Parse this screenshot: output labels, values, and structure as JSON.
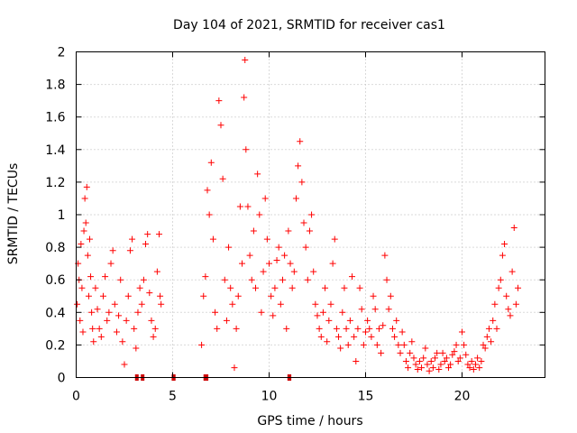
{
  "chart_data": {
    "type": "scatter",
    "title": "Day 104 of 2021, SRMTID for receiver cas1",
    "xlabel": "GPS time / hours",
    "ylabel": "SRMTID / TECUs",
    "xlim": [
      0,
      24.3
    ],
    "ylim": [
      0,
      2
    ],
    "xticks": [
      0,
      5,
      10,
      15,
      20
    ],
    "xtick_labels": [
      "0",
      "5",
      "10",
      "15",
      "20"
    ],
    "yticks": [
      0,
      0.2,
      0.4,
      0.6,
      0.8,
      1,
      1.2,
      1.4,
      1.6,
      1.8,
      2
    ],
    "ytick_labels": [
      "0",
      "0.2",
      "0.4",
      "0.6",
      "0.8",
      "1",
      "1.2",
      "1.4",
      "1.6",
      "1.8",
      "2"
    ],
    "grid": true,
    "marker": "plus",
    "colors": {
      "points": "#ff0000",
      "gaps": "#cc0000",
      "grid": "#b4b4b4",
      "frame": "#000000"
    },
    "series": [
      {
        "name": "SRMTID",
        "points": [
          [
            0.05,
            0.45
          ],
          [
            0.1,
            0.7
          ],
          [
            0.15,
            0.6
          ],
          [
            0.2,
            0.35
          ],
          [
            0.25,
            0.82
          ],
          [
            0.3,
            0.55
          ],
          [
            0.35,
            0.28
          ],
          [
            0.4,
            0.9
          ],
          [
            0.45,
            1.1
          ],
          [
            0.5,
            0.95
          ],
          [
            0.55,
            1.17
          ],
          [
            0.6,
            0.75
          ],
          [
            0.65,
            0.5
          ],
          [
            0.7,
            0.85
          ],
          [
            0.75,
            0.62
          ],
          [
            0.8,
            0.4
          ],
          [
            0.85,
            0.3
          ],
          [
            0.9,
            0.22
          ],
          [
            1.0,
            0.55
          ],
          [
            1.1,
            0.42
          ],
          [
            1.2,
            0.3
          ],
          [
            1.3,
            0.25
          ],
          [
            1.4,
            0.5
          ],
          [
            1.5,
            0.62
          ],
          [
            1.6,
            0.35
          ],
          [
            1.7,
            0.4
          ],
          [
            1.8,
            0.7
          ],
          [
            1.9,
            0.78
          ],
          [
            2.0,
            0.45
          ],
          [
            2.1,
            0.28
          ],
          [
            2.2,
            0.38
          ],
          [
            2.3,
            0.6
          ],
          [
            2.4,
            0.22
          ],
          [
            2.5,
            0.08
          ],
          [
            2.6,
            0.35
          ],
          [
            2.7,
            0.5
          ],
          [
            2.8,
            0.78
          ],
          [
            2.9,
            0.85
          ],
          [
            3.0,
            0.3
          ],
          [
            3.1,
            0.18
          ],
          [
            3.2,
            0.4
          ],
          [
            3.3,
            0.55
          ],
          [
            3.4,
            0.45
          ],
          [
            3.5,
            0.6
          ],
          [
            3.6,
            0.82
          ],
          [
            3.7,
            0.88
          ],
          [
            3.8,
            0.52
          ],
          [
            3.9,
            0.35
          ],
          [
            4.0,
            0.25
          ],
          [
            4.1,
            0.3
          ],
          [
            4.2,
            0.65
          ],
          [
            4.3,
            0.88
          ],
          [
            4.35,
            0.5
          ],
          [
            4.4,
            0.45
          ],
          [
            6.5,
            0.2
          ],
          [
            6.6,
            0.5
          ],
          [
            6.7,
            0.62
          ],
          [
            6.8,
            1.15
          ],
          [
            6.9,
            1.0
          ],
          [
            7.0,
            1.32
          ],
          [
            7.1,
            0.85
          ],
          [
            7.2,
            0.4
          ],
          [
            7.3,
            0.3
          ],
          [
            7.4,
            1.7
          ],
          [
            7.5,
            1.55
          ],
          [
            7.6,
            1.22
          ],
          [
            7.7,
            0.6
          ],
          [
            7.8,
            0.35
          ],
          [
            7.9,
            0.8
          ],
          [
            8.0,
            0.55
          ],
          [
            8.1,
            0.45
          ],
          [
            8.2,
            0.06
          ],
          [
            8.3,
            0.3
          ],
          [
            8.4,
            0.5
          ],
          [
            8.5,
            1.05
          ],
          [
            8.6,
            0.7
          ],
          [
            8.7,
            1.72
          ],
          [
            8.75,
            1.95
          ],
          [
            8.8,
            1.4
          ],
          [
            8.9,
            1.05
          ],
          [
            9.0,
            0.75
          ],
          [
            9.1,
            0.6
          ],
          [
            9.2,
            0.9
          ],
          [
            9.3,
            0.55
          ],
          [
            9.4,
            1.25
          ],
          [
            9.5,
            1.0
          ],
          [
            9.6,
            0.4
          ],
          [
            9.7,
            0.65
          ],
          [
            9.8,
            1.1
          ],
          [
            9.9,
            0.85
          ],
          [
            10.0,
            0.7
          ],
          [
            10.1,
            0.5
          ],
          [
            10.2,
            0.38
          ],
          [
            10.3,
            0.55
          ],
          [
            10.4,
            0.72
          ],
          [
            10.5,
            0.8
          ],
          [
            10.6,
            0.45
          ],
          [
            10.7,
            0.6
          ],
          [
            10.8,
            0.75
          ],
          [
            10.9,
            0.3
          ],
          [
            11.0,
            0.9
          ],
          [
            11.1,
            0.7
          ],
          [
            11.2,
            0.55
          ],
          [
            11.3,
            0.65
          ],
          [
            11.4,
            1.1
          ],
          [
            11.5,
            1.3
          ],
          [
            11.6,
            1.45
          ],
          [
            11.7,
            1.2
          ],
          [
            11.8,
            0.95
          ],
          [
            11.9,
            0.8
          ],
          [
            12.0,
            0.6
          ],
          [
            12.1,
            0.9
          ],
          [
            12.2,
            1.0
          ],
          [
            12.3,
            0.65
          ],
          [
            12.4,
            0.45
          ],
          [
            12.5,
            0.38
          ],
          [
            12.6,
            0.3
          ],
          [
            12.7,
            0.25
          ],
          [
            12.8,
            0.4
          ],
          [
            12.9,
            0.55
          ],
          [
            13.0,
            0.22
          ],
          [
            13.1,
            0.35
          ],
          [
            13.2,
            0.45
          ],
          [
            13.3,
            0.7
          ],
          [
            13.4,
            0.85
          ],
          [
            13.5,
            0.3
          ],
          [
            13.6,
            0.25
          ],
          [
            13.7,
            0.18
          ],
          [
            13.8,
            0.4
          ],
          [
            13.9,
            0.55
          ],
          [
            14.0,
            0.3
          ],
          [
            14.1,
            0.2
          ],
          [
            14.2,
            0.35
          ],
          [
            14.3,
            0.62
          ],
          [
            14.4,
            0.25
          ],
          [
            14.5,
            0.1
          ],
          [
            14.6,
            0.3
          ],
          [
            14.7,
            0.55
          ],
          [
            14.8,
            0.42
          ],
          [
            14.9,
            0.2
          ],
          [
            15.0,
            0.28
          ],
          [
            15.1,
            0.35
          ],
          [
            15.2,
            0.3
          ],
          [
            15.3,
            0.25
          ],
          [
            15.4,
            0.5
          ],
          [
            15.5,
            0.42
          ],
          [
            15.6,
            0.2
          ],
          [
            15.7,
            0.3
          ],
          [
            15.8,
            0.15
          ],
          [
            15.9,
            0.32
          ],
          [
            16.0,
            0.75
          ],
          [
            16.1,
            0.6
          ],
          [
            16.2,
            0.42
          ],
          [
            16.3,
            0.5
          ],
          [
            16.4,
            0.3
          ],
          [
            16.5,
            0.25
          ],
          [
            16.6,
            0.35
          ],
          [
            16.7,
            0.2
          ],
          [
            16.8,
            0.15
          ],
          [
            16.9,
            0.28
          ],
          [
            17.0,
            0.2
          ],
          [
            17.1,
            0.1
          ],
          [
            17.2,
            0.06
          ],
          [
            17.3,
            0.15
          ],
          [
            17.4,
            0.22
          ],
          [
            17.5,
            0.12
          ],
          [
            17.6,
            0.08
          ],
          [
            17.7,
            0.05
          ],
          [
            17.8,
            0.1
          ],
          [
            17.9,
            0.06
          ],
          [
            18.0,
            0.12
          ],
          [
            18.1,
            0.18
          ],
          [
            18.2,
            0.08
          ],
          [
            18.3,
            0.04
          ],
          [
            18.4,
            0.1
          ],
          [
            18.5,
            0.06
          ],
          [
            18.6,
            0.12
          ],
          [
            18.7,
            0.15
          ],
          [
            18.8,
            0.05
          ],
          [
            18.9,
            0.08
          ],
          [
            19.0,
            0.15
          ],
          [
            19.1,
            0.1
          ],
          [
            19.2,
            0.12
          ],
          [
            19.3,
            0.06
          ],
          [
            19.4,
            0.08
          ],
          [
            19.5,
            0.14
          ],
          [
            19.6,
            0.16
          ],
          [
            19.7,
            0.2
          ],
          [
            19.8,
            0.1
          ],
          [
            19.9,
            0.12
          ],
          [
            20.0,
            0.28
          ],
          [
            20.1,
            0.2
          ],
          [
            20.2,
            0.14
          ],
          [
            20.3,
            0.08
          ],
          [
            20.4,
            0.06
          ],
          [
            20.5,
            0.1
          ],
          [
            20.6,
            0.05
          ],
          [
            20.7,
            0.08
          ],
          [
            20.8,
            0.12
          ],
          [
            20.9,
            0.06
          ],
          [
            21.0,
            0.1
          ],
          [
            21.1,
            0.2
          ],
          [
            21.2,
            0.18
          ],
          [
            21.3,
            0.25
          ],
          [
            21.4,
            0.3
          ],
          [
            21.5,
            0.22
          ],
          [
            21.6,
            0.35
          ],
          [
            21.7,
            0.45
          ],
          [
            21.8,
            0.3
          ],
          [
            21.9,
            0.55
          ],
          [
            22.0,
            0.6
          ],
          [
            22.1,
            0.75
          ],
          [
            22.2,
            0.82
          ],
          [
            22.3,
            0.5
          ],
          [
            22.4,
            0.42
          ],
          [
            22.5,
            0.38
          ],
          [
            22.6,
            0.65
          ],
          [
            22.7,
            0.92
          ],
          [
            22.8,
            0.45
          ],
          [
            22.9,
            0.55
          ]
        ]
      }
    ],
    "gaps": [
      {
        "x_start": 3.05,
        "x_end": 3.15
      },
      {
        "x_start": 3.35,
        "x_end": 3.45
      },
      {
        "x_start": 4.95,
        "x_end": 5.15
      },
      {
        "x_start": 6.6,
        "x_end": 6.85
      },
      {
        "x_start": 10.95,
        "x_end": 11.15
      }
    ]
  }
}
